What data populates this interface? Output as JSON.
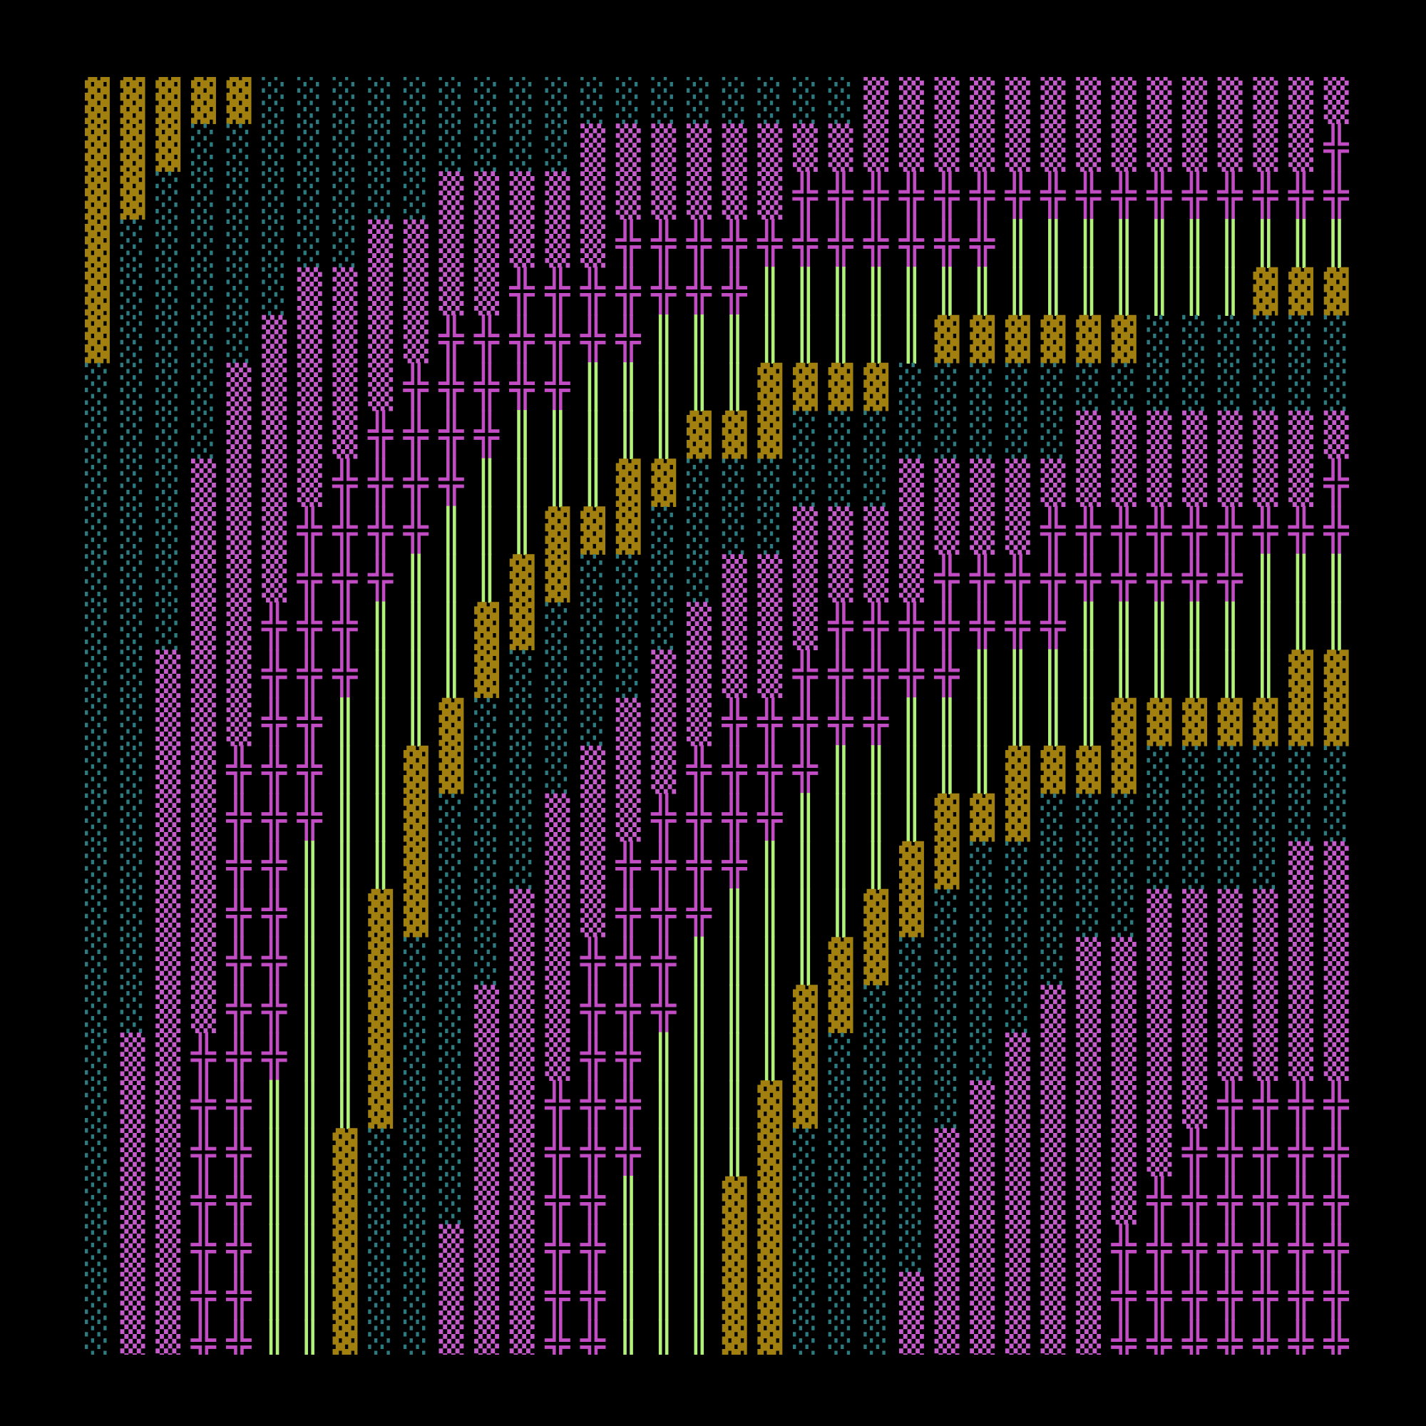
{
  "grid": {
    "rows": [
      "▓▓▓▓▓░░░░░░░░░░░░░░░░░▒▒▒▒▒▒▒▒▒▒▒▒▒▒▒",
      "▓▓▓░░░░░░░░░░░▒▒▒▒▒▒▒▒▒▒▒▒▒▒▒▒▒▒▒▒▒╬╬",
      "▓▓░░░░░░░░▒▒▒▒▒▒▒▒▒▒╬╬╬╬╬╬╬╬╬╬╬╬╬╬╬╬╬",
      "▓░░░░░░░▒▒▒▒▒▒▒╬╬╬╬╬╬╬╬╬╬╬║║║║║║║║║║║",
      "▓░░░░░▒▒▒▒▒▒╬╬╬╬╬╬╬║║║║║║║║║║║║║║▓▓▓▓",
      "▓░░░░▒▒▒▒▒╬╬╬╬╬╬║║║║║║║║▓▓▓▓▓▓░░░░░░░",
      "░░░░▒▒▒▒▒╬╬╬╬╬║║║║║▓▓▓▓░░░░░░░░░░░░░░",
      "░░░░▒▒▒▒╬╬╬╬║║║║║▓▓▓░░░░░░░░▒▒▒▒▒▒▒▒▒",
      "░░░▒▒▒▒╬╬╬╬║║║║▓▓░░░░░░▒▒▒▒▒▒▒▒▒▒▒▒╬╬",
      "░░░▒▒▒╬╬╬╬║║║▓▓▓░░░░▒▒▒▒▒▒▒╬╬╬╬╬╬╬╬╬╬",
      "░░░▒▒▒╬╬╬║║║▓▓░░░░▒▒▒▒▒▒╬╬╬╬╬╬╬╬╬║║║║",
      "░░░▒▒╬╬╬║║║▓▓░░░░▒▒▒▒╬╬╬╬╬╬╬║║║║║║║║║",
      "░░▒▒▒╬╬╬║║║▓░░░░▒▒▒▒╬╬╬╬╬║║║║║║║║║▓▓▓",
      "░░▒▒▒╬╬║║║▓░░░░▒▒▒╬╬╬╬╬║║║║║║▓▓▓▓▓▓▓▓",
      "░░▒▒╬╬╬║║▓▓░░░▒▒▒╬╬╬╬║║║║║▓▓▓▓░░░░░░░",
      "░░▒▒╬╬╬║║▓░░░▒▒▒╬╬╬╬║║║║▓▓▓░░░░░░░░░░",
      "░░▒▒╬╬║║║▓░░░▒▒╬╬╬╬║║║║▓▓░░░░░░░░░▒▒▒",
      "░░▒▒╬╬║║▓▓░░▒▒▒╬╬╬║║║║▓▓░░░░░░▒▒▒▒▒▒▒",
      "░░▒▒╬╬║║▓░░░▒▒╬╬╬║║║║▓▓░░░░░▒▒▒▒▒▒▒▒▒",
      "░░▒▒╬╬║║▓░░▒▒▒╬╬╬║║║▓▓░░░░░▒▒▒▒▒▒▒▒▒▒",
      "░▒▒╬╬╬║║▓░░▒▒▒╬╬║║║║▓░░░░░▒▒▒▒▒▒▒▒▒▒▒",
      "░▒▒╬╬║║║▓░░▒▒╬╬╬║║║▓▓░░░░▒▒▒▒▒▒▒╬╬╬╬╬",
      "░▒▒╬╬║║▓░░░▒▒╬╬╬║║║▓░░░░▒▒▒▒▒▒▒╬╬╬╬╬╬",
      "░▒▒╬╬║║▓░░░▒▒╬╬║║║▓▓░░░░▒▒▒▒▒▒╬╬╬╬╬╬╬",
      "░▒▒╬╬║║▓░░▒▒▒╬╬║║║▓▓░░░░▒▒▒▒▒╬╬╬╬╬╬╬╬",
      "░▒▒╬╬║║▓░░▒▒▒╬╬║║║▓▓░░░▒▒▒▒▒▒╬╬╬╬╬╬╬╬",
      "░▒▒╬╬║║▓░░▒▒▒╬╬║║║▓▓░░░▒▒▒▒▒▒╬╬╬╬╬╬╬╬"
    ]
  }
}
